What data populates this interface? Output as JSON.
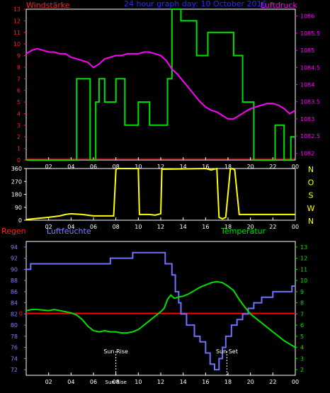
{
  "labels": {
    "windstaerke": "Windstärke",
    "center_title": "24 hour graph day: 10 October 2016",
    "luftdruck": "Luftdruck",
    "regen": "Regen",
    "luftfeuchte": "Luftfeuchte",
    "temperatur": "Temperatur",
    "sun_rise": "Sun Rise",
    "sun_set": "Sun Set",
    "sun_bottom": "Sun Rise"
  },
  "colors": {
    "wind": "#00e000",
    "pressure": "#ff00ff",
    "direction": "#ffff00",
    "humidity": "#7070ff",
    "temperature": "#00e000",
    "rain": "#ff0000",
    "grid": "#ffffff",
    "left_axis": "#ff2020",
    "ylabel_dir": "#ffff00"
  },
  "chart_data": [
    {
      "type": "line",
      "name": "wind-pressure",
      "x_ticks": [
        "02",
        "04",
        "06",
        "08",
        "10",
        "12",
        "14",
        "16",
        "18",
        "20",
        "22",
        "00"
      ],
      "left_axis": {
        "label": "Windstärke",
        "ticks": [
          0,
          1,
          2,
          3,
          4,
          5,
          6,
          7,
          8,
          9,
          10,
          11,
          12,
          13
        ],
        "ylim": [
          0,
          13
        ]
      },
      "right_axis": {
        "label": "Luftdruck",
        "ticks": [
          "1082",
          "1082.5",
          "1083",
          "1083.5",
          "1084",
          "1084.5",
          "1085",
          "1085.5",
          "1086"
        ],
        "ylim": [
          1081.8,
          1086.2
        ]
      },
      "series": [
        {
          "axis": "left",
          "color": "wind",
          "step": true,
          "x": [
            0,
            4.5,
            4.5,
            5.7,
            5.7,
            6.2,
            6.2,
            6.5,
            6.5,
            7,
            7,
            8,
            8,
            8.8,
            8.8,
            10,
            10,
            11,
            11,
            12.6,
            12.6,
            13,
            13,
            13.8,
            13.8,
            15.2,
            15.2,
            16.2,
            16.2,
            18.5,
            18.5,
            19.3,
            19.3,
            20.3,
            20.3,
            22.2,
            22.2,
            23,
            23,
            23.6,
            23.6,
            24
          ],
          "y": [
            0,
            0,
            7,
            7,
            0,
            0,
            5,
            5,
            7,
            7,
            5,
            5,
            7,
            7,
            3,
            3,
            5,
            5,
            3,
            3,
            7,
            7,
            13,
            13,
            12,
            12,
            9,
            9,
            11,
            11,
            9,
            9,
            5,
            5,
            0,
            0,
            3,
            3,
            0,
            0,
            2,
            2
          ]
        },
        {
          "axis": "right",
          "color": "pressure",
          "step": false,
          "x": [
            0,
            0.5,
            1,
            1.5,
            2,
            2.5,
            3,
            3.5,
            4,
            4.5,
            5,
            5.5,
            6,
            6.5,
            7,
            7.5,
            8,
            8.5,
            9,
            9.5,
            10,
            10.5,
            11,
            11.5,
            12,
            12.5,
            13,
            13.5,
            14,
            14.5,
            15,
            15.5,
            16,
            16.5,
            17,
            17.5,
            18,
            18.5,
            19,
            19.5,
            20,
            20.5,
            21,
            21.5,
            22,
            22.5,
            23,
            23.5,
            24
          ],
          "y": [
            1084.9,
            1085,
            1085.05,
            1085,
            1084.95,
            1084.95,
            1084.9,
            1084.9,
            1084.8,
            1084.75,
            1084.7,
            1084.65,
            1084.5,
            1084.6,
            1084.75,
            1084.8,
            1084.85,
            1084.85,
            1084.9,
            1084.9,
            1084.9,
            1084.95,
            1084.95,
            1084.9,
            1084.85,
            1084.7,
            1084.45,
            1084.3,
            1084.1,
            1083.9,
            1083.7,
            1083.5,
            1083.35,
            1083.25,
            1083.2,
            1083.1,
            1083.0,
            1083.0,
            1083.1,
            1083.2,
            1083.3,
            1083.35,
            1083.4,
            1083.45,
            1083.45,
            1083.4,
            1083.3,
            1083.15,
            1083.25
          ]
        }
      ]
    },
    {
      "type": "line",
      "name": "wind-direction",
      "x_ticks": [
        "02",
        "04",
        "06",
        "08",
        "10",
        "12",
        "14",
        "16",
        "18",
        "20",
        "22",
        "00"
      ],
      "left_axis": {
        "ticks": [
          0,
          90,
          180,
          270,
          360
        ],
        "ylim": [
          0,
          360
        ]
      },
      "right_axis": {
        "label": "N W S O N",
        "ticks": [
          "N",
          "W",
          "S",
          "O",
          "N"
        ]
      },
      "series": [
        {
          "color": "direction",
          "x": [
            0,
            2,
            3,
            3.5,
            4,
            5,
            5.5,
            6,
            7,
            7.8,
            8,
            8.1,
            10,
            10.1,
            11,
            11.5,
            12,
            12.1,
            16,
            16.5,
            17,
            17.2,
            17.5,
            17.8,
            18.2,
            18.4,
            18.6,
            19,
            22,
            24
          ],
          "y": [
            5,
            20,
            30,
            40,
            45,
            40,
            35,
            30,
            30,
            30,
            350,
            360,
            360,
            40,
            40,
            35,
            45,
            355,
            360,
            350,
            360,
            20,
            10,
            20,
            355,
            360,
            350,
            40,
            40,
            40
          ]
        }
      ]
    },
    {
      "type": "line",
      "name": "humidity-temperature",
      "x_ticks": [
        "02",
        "04",
        "06",
        "08",
        "10",
        "12",
        "14",
        "16",
        "18",
        "20",
        "22",
        "00"
      ],
      "left_axis": {
        "label": "Luftfeuchte",
        "ticks": [
          72,
          74,
          76,
          78,
          80,
          82,
          84,
          86,
          88,
          90,
          92,
          94
        ],
        "ylim": [
          71,
          95
        ]
      },
      "rain_axis": {
        "label": "Regen",
        "ticks": [
          "0"
        ]
      },
      "right_axis": {
        "label": "Temperatur",
        "ticks": [
          2,
          3,
          4,
          5,
          6,
          7,
          8,
          9,
          10,
          11,
          12,
          13
        ],
        "ylim": [
          1.5,
          13.5
        ]
      },
      "annotations": [
        {
          "text": "Sun Rise",
          "x": 8.0
        },
        {
          "text": "Sun Set",
          "x": 17.9
        }
      ],
      "series": [
        {
          "axis": "left",
          "color": "humidity",
          "step": true,
          "x": [
            0,
            0.4,
            0.4,
            2.5,
            2.5,
            3.5,
            3.5,
            6.3,
            6.3,
            7.5,
            7.5,
            9.5,
            9.5,
            10.8,
            10.8,
            11.3,
            11.3,
            12.4,
            12.4,
            13.0,
            13.0,
            13.3,
            13.3,
            13.6,
            13.6,
            13.8,
            13.8,
            14.3,
            14.3,
            15.0,
            15.0,
            15.5,
            15.5,
            16.0,
            16.0,
            16.4,
            16.4,
            16.8,
            16.8,
            17.2,
            17.2,
            17.5,
            17.5,
            17.8,
            17.8,
            18.3,
            18.3,
            18.8,
            18.8,
            19.3,
            19.3,
            19.8,
            19.8,
            20.3,
            20.3,
            21,
            21,
            22,
            22,
            23,
            23,
            23.7,
            23.7,
            24
          ],
          "y": [
            90,
            90,
            91,
            91,
            91,
            91,
            91,
            91,
            91,
            91,
            92,
            92,
            93,
            93,
            93,
            93,
            93,
            93,
            91,
            91,
            89,
            89,
            86,
            86,
            84,
            84,
            82,
            82,
            80,
            80,
            78,
            78,
            77,
            77,
            75,
            75,
            73,
            73,
            72,
            72,
            74,
            74,
            76,
            76,
            78,
            78,
            80,
            80,
            81,
            81,
            82,
            82,
            83,
            83,
            84,
            84,
            85,
            85,
            86,
            86,
            86,
            86,
            87,
            87
          ]
        },
        {
          "axis": "right",
          "color": "temperature",
          "step": false,
          "x": [
            0,
            0.5,
            1,
            2,
            2.5,
            3,
            3.5,
            4,
            4.5,
            5,
            5.5,
            6,
            6.5,
            7,
            7.5,
            8,
            8.5,
            9,
            9.5,
            10,
            10.5,
            11,
            11.5,
            12,
            12.3,
            12.6,
            12.9,
            13.2,
            13.5,
            14,
            14.5,
            15,
            15.5,
            16,
            16.5,
            17,
            17.5,
            18,
            18.5,
            19,
            19.5,
            20,
            20.5,
            21,
            21.5,
            22,
            22.5,
            23,
            23.5,
            24
          ],
          "y": [
            7.3,
            7.4,
            7.4,
            7.3,
            7.4,
            7.3,
            7.2,
            7.1,
            6.9,
            6.5,
            5.9,
            5.5,
            5.4,
            5.5,
            5.4,
            5.4,
            5.3,
            5.3,
            5.4,
            5.6,
            6.0,
            6.4,
            6.8,
            7.2,
            7.5,
            8.3,
            8.7,
            8.4,
            8.5,
            8.6,
            8.8,
            9.1,
            9.4,
            9.6,
            9.8,
            9.9,
            9.8,
            9.5,
            9.1,
            8.3,
            7.6,
            7.0,
            6.6,
            6.2,
            5.8,
            5.4,
            5.0,
            4.6,
            4.3,
            4.0
          ]
        },
        {
          "axis": "rain",
          "color": "rain",
          "step": false,
          "x": [
            0,
            24
          ],
          "y": [
            0,
            0
          ]
        }
      ]
    }
  ]
}
